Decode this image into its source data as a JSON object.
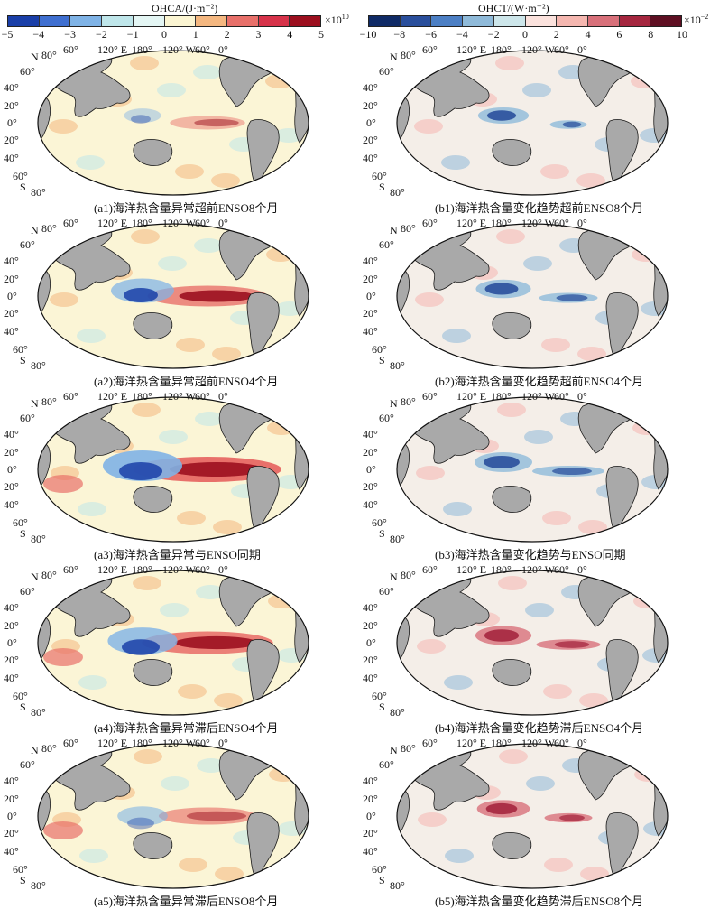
{
  "colorbars": {
    "left": {
      "title": "OHCA/(J·m⁻²)",
      "ticks": [
        "−5",
        "−4",
        "−3",
        "−2",
        "−1",
        "0",
        "1",
        "2",
        "3",
        "4",
        "5"
      ],
      "scale_base": "×10",
      "scale_exp": "10",
      "colors": [
        "#1a3fa8",
        "#3f6fd0",
        "#7fb3e6",
        "#bfe6ea",
        "#e4f6f4",
        "#fbf5d2",
        "#f4b780",
        "#e8706a",
        "#d7334a",
        "#9c0f1f"
      ]
    },
    "right": {
      "title": "OHCT/(W·m⁻²)",
      "ticks": [
        "−10",
        "−8",
        "−6",
        "−4",
        "−2",
        "0",
        "2",
        "4",
        "6",
        "8",
        "10"
      ],
      "scale_base": "×10",
      "scale_exp": "−2",
      "colors": [
        "#0f2a66",
        "#2a4f9c",
        "#4c7fc4",
        "#8fbad9",
        "#cde6ea",
        "#fbe2dd",
        "#f5b7b0",
        "#d8707a",
        "#a5263f",
        "#5e0f22"
      ]
    }
  },
  "map_labels": {
    "lon": [
      "60°",
      "120° E",
      "180°",
      "120° W",
      "60°",
      "0°"
    ],
    "lat": [
      "80°",
      "60°",
      "40°",
      "20°",
      "0°",
      "20°",
      "40°",
      "60°",
      "80°"
    ],
    "north": "N",
    "south": "S"
  },
  "panels": [
    {
      "caption": "(a1)海洋热含量异常超前ENSO8个月",
      "bar": "left"
    },
    {
      "caption": "(b1)海洋热含量变化趋势超前ENSO8个月",
      "bar": "right"
    },
    {
      "caption": "(a2)海洋热含量异常超前ENSO4个月",
      "bar": "left"
    },
    {
      "caption": "(b2)海洋热含量变化趋势超前ENSO4个月",
      "bar": "right"
    },
    {
      "caption": "(a3)海洋热含量异常与ENSO同期",
      "bar": "left"
    },
    {
      "caption": "(b3)海洋热含量变化趋势与ENSO同期",
      "bar": "right"
    },
    {
      "caption": "(a4)海洋热含量异常滞后ENSO4个月",
      "bar": "left"
    },
    {
      "caption": "(b4)海洋热含量变化趋势滞后ENSO4个月",
      "bar": "right"
    },
    {
      "caption": "(a5)海洋热含量异常滞后ENSO8个月",
      "bar": "left"
    },
    {
      "caption": "(b5)海洋热含量变化趋势滞后ENSO8个月",
      "bar": "right"
    }
  ]
}
